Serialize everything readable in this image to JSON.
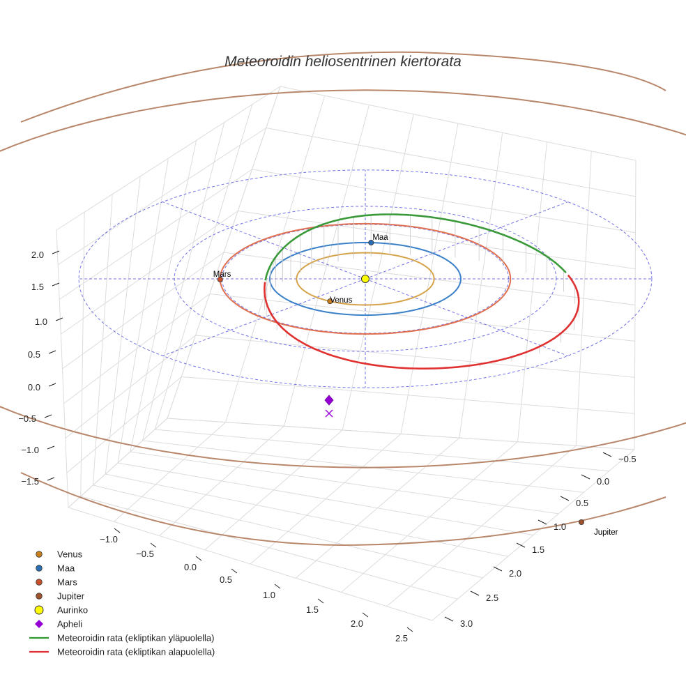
{
  "chart_data": {
    "type": "line",
    "title": "Meteoroidin heliosentrinen kiertorata",
    "projection": "3d",
    "grid": true,
    "legend_placement": "bottom-left",
    "axes": {
      "x": {
        "ticks": [
          "−1.0",
          "−0.5",
          "0.0",
          "0.5",
          "1.0",
          "1.5",
          "2.0",
          "2.5"
        ]
      },
      "y": {
        "ticks": [
          "−0.5",
          "0.0",
          "0.5",
          "1.0",
          "1.5",
          "2.0",
          "2.5",
          "3.0"
        ]
      },
      "z": {
        "ticks": [
          "2.0",
          "1.5",
          "1.0",
          "0.5",
          "0.0",
          "−0.5",
          "−1.0",
          "−1.5"
        ]
      }
    },
    "planets": [
      {
        "name": "Venus",
        "orbit_radius_au": 0.72,
        "color": "#d4a34a",
        "marker_color": "#c87f1e",
        "label": "Venus"
      },
      {
        "name": "Maa",
        "orbit_radius_au": 1.0,
        "color": "#3a80c9",
        "marker_color": "#2a6eb5",
        "label": "Maa"
      },
      {
        "name": "Mars",
        "orbit_radius_au": 1.52,
        "color": "#e07050",
        "marker_color": "#c9522a",
        "label": "Mars"
      },
      {
        "name": "Jupiter",
        "orbit_radius_au": 5.2,
        "color": "#b8866a",
        "marker_color": "#a0522d",
        "label": "Jupiter"
      }
    ],
    "sun": {
      "name": "Aurinko",
      "color": "#ffff00"
    },
    "aphelion": {
      "name": "Apheli",
      "color": "#9400d3"
    },
    "series": [
      {
        "name": "Meteoroidin rata (ekliptikan yläpuolella)",
        "color": "#3a9a3a"
      },
      {
        "name": "Meteoroidin rata (ekliptikan alapuolella)",
        "color": "#e03030"
      }
    ],
    "legend": [
      {
        "label": "Venus",
        "type": "dot",
        "color": "#c87f1e"
      },
      {
        "label": "Maa",
        "type": "dot",
        "color": "#2a6eb5"
      },
      {
        "label": "Mars",
        "type": "dot",
        "color": "#c9522a"
      },
      {
        "label": "Jupiter",
        "type": "dot",
        "color": "#a0522d"
      },
      {
        "label": "Aurinko",
        "type": "sun",
        "color": "#ffff00"
      },
      {
        "label": "Apheli",
        "type": "diamond",
        "color": "#9400d3"
      },
      {
        "label": "Meteoroidin rata (ekliptikan yläpuolella)",
        "type": "line",
        "color": "#2e9a2e"
      },
      {
        "label": "Meteoroidin rata (ekliptikan alapuolella)",
        "type": "line",
        "color": "#e03030"
      }
    ]
  }
}
